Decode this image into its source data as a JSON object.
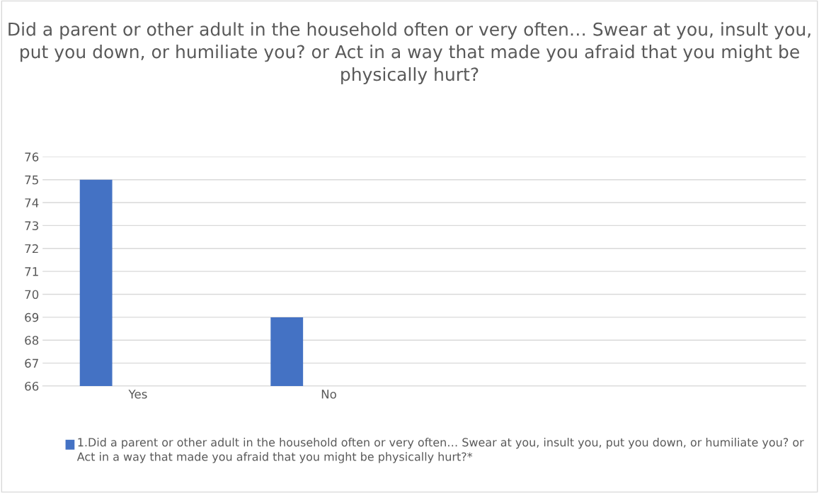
{
  "chart_data": {
    "type": "bar",
    "title": "Did a parent or other adult in the household often or very often… Swear at you, insult you, put you down, or humiliate you? or Act in a way that made you afraid that you might be physically hurt?",
    "categories": [
      "Yes",
      "No",
      null,
      null
    ],
    "series": [
      {
        "name": "1.Did a parent or other adult in the household often or very often… Swear at you, insult you, put you down, or humiliate you? or Act in a way that made you afraid that you might be physically hurt?*",
        "color": "#4472c4",
        "values": [
          75,
          69,
          null,
          null
        ]
      }
    ],
    "ylim": [
      66,
      76
    ],
    "yticks": [
      66,
      67,
      68,
      69,
      70,
      71,
      72,
      73,
      74,
      75,
      76
    ],
    "grid": "y",
    "legend": "bottom"
  }
}
